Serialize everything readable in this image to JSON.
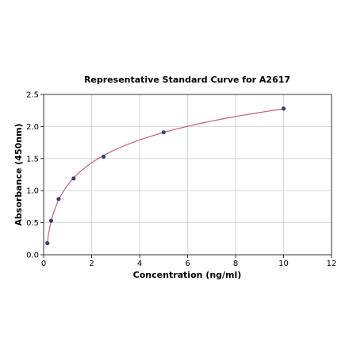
{
  "chart_data": {
    "type": "scatter",
    "title": "Representative Standard Curve for A2617",
    "xlabel": "Concentration (ng/ml)",
    "ylabel": "Absorbance (450nm)",
    "xlim": [
      0,
      12
    ],
    "ylim": [
      0,
      2.5
    ],
    "xticks": [
      0,
      2,
      4,
      6,
      8,
      10,
      12
    ],
    "yticks": [
      0.0,
      0.5,
      1.0,
      1.5,
      2.0,
      2.5
    ],
    "xtick_labels": [
      "0",
      "2",
      "4",
      "6",
      "8",
      "10",
      "12"
    ],
    "ytick_labels": [
      "0.0",
      "0.5",
      "1.0",
      "1.5",
      "2.0",
      "2.5"
    ],
    "grid": true,
    "series": [
      {
        "points": [
          {
            "x": 0.156,
            "y": 0.18
          },
          {
            "x": 0.312,
            "y": 0.53
          },
          {
            "x": 0.625,
            "y": 0.87
          },
          {
            "x": 1.25,
            "y": 1.19
          },
          {
            "x": 2.5,
            "y": 1.53
          },
          {
            "x": 5,
            "y": 1.91
          },
          {
            "x": 10,
            "y": 2.28
          }
        ],
        "marker_color": "#3a3f6b",
        "fit_line_color": "#c0607a"
      }
    ]
  }
}
